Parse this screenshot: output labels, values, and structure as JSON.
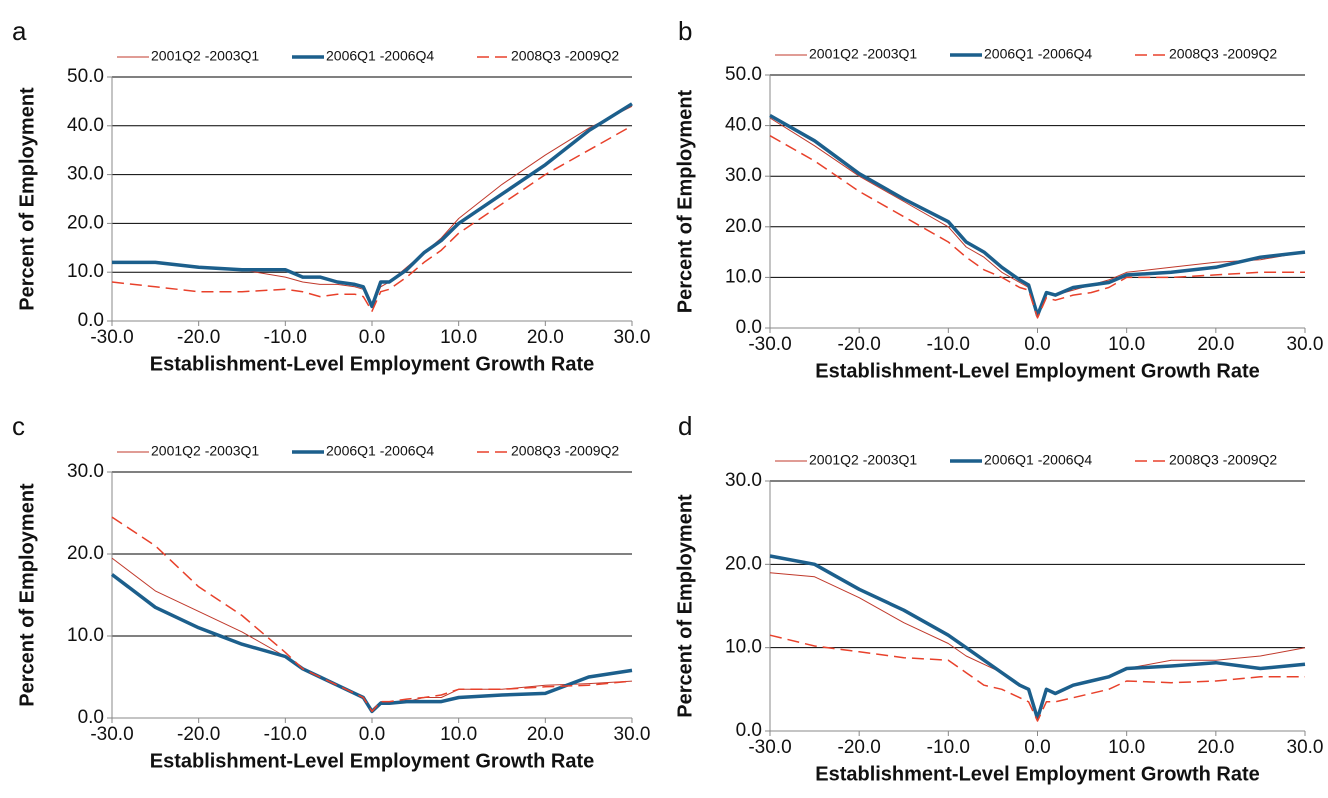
{
  "chart_data": [
    {
      "type": "line",
      "panel": "a",
      "x_label": "Establishment-Level Employment Growth Rate",
      "y_label": "Percent of Employment",
      "grid": true,
      "x": [
        -30,
        -25,
        -20,
        -15,
        -10,
        -8,
        -6,
        -4,
        -2,
        -1,
        0,
        1,
        2,
        4,
        6,
        8,
        10,
        15,
        20,
        25,
        30
      ],
      "xlim": [
        -30,
        30
      ],
      "xticks": [
        {
          "value": -30,
          "label": "-30.0"
        },
        {
          "value": -20,
          "label": "-20.0"
        },
        {
          "value": -10,
          "label": "-10.0"
        },
        {
          "value": 0,
          "label": "0.0"
        },
        {
          "value": 10,
          "label": "10.0"
        },
        {
          "value": 20,
          "label": "20.0"
        },
        {
          "value": 30,
          "label": "30.0"
        }
      ],
      "ylim": [
        0,
        50
      ],
      "yticks": [
        {
          "value": 0,
          "label": "0.0"
        },
        {
          "value": 10,
          "label": "10.0"
        },
        {
          "value": 20,
          "label": "20.0"
        },
        {
          "value": 30,
          "label": "30.0"
        },
        {
          "value": 40,
          "label": "40.0"
        },
        {
          "value": 50,
          "label": "50.0"
        }
      ],
      "series": [
        {
          "name": "2001Q2 -2003Q1",
          "color": "#c0392b",
          "width": 1,
          "dashed": false,
          "values": [
            12,
            12,
            11,
            10.5,
            9,
            8,
            7.5,
            7.5,
            7,
            6.5,
            3,
            7,
            8,
            11,
            14,
            17,
            21,
            28,
            34,
            39.5,
            44
          ]
        },
        {
          "name": "2006Q1 -2006Q4",
          "color": "#1c5f8c",
          "width": 3.5,
          "dashed": false,
          "values": [
            12,
            12,
            11,
            10.5,
            10.5,
            9,
            9,
            8,
            7.5,
            7,
            3,
            8,
            8,
            10.5,
            14,
            16.5,
            20,
            26,
            32,
            39,
            44.5
          ]
        },
        {
          "name": "2008Q3 -2009Q2",
          "color": "#e8412b",
          "width": 1.5,
          "dashed": true,
          "values": [
            8,
            7,
            6,
            6,
            6.5,
            6,
            5,
            5.5,
            5.5,
            5,
            2,
            6,
            6.5,
            9,
            12,
            14.5,
            18,
            24,
            30,
            35,
            40
          ]
        }
      ]
    },
    {
      "type": "line",
      "panel": "b",
      "x_label": "Establishment-Level Employment Growth Rate",
      "y_label": "Percent of Employment",
      "grid": true,
      "x": [
        -30,
        -25,
        -20,
        -15,
        -10,
        -8,
        -6,
        -4,
        -2,
        -1,
        0,
        1,
        2,
        4,
        6,
        8,
        10,
        15,
        20,
        25,
        30
      ],
      "xlim": [
        -30,
        30
      ],
      "xticks": [
        {
          "value": -30,
          "label": "-30.0"
        },
        {
          "value": -20,
          "label": "-20.0"
        },
        {
          "value": -10,
          "label": "-10.0"
        },
        {
          "value": 0,
          "label": "0.0"
        },
        {
          "value": 10,
          "label": "10.0"
        },
        {
          "value": 20,
          "label": "20.0"
        },
        {
          "value": 30,
          "label": "30.0"
        }
      ],
      "ylim": [
        0,
        50
      ],
      "yticks": [
        {
          "value": 0,
          "label": "0.0"
        },
        {
          "value": 10,
          "label": "10.0"
        },
        {
          "value": 20,
          "label": "20.0"
        },
        {
          "value": 30,
          "label": "30.0"
        },
        {
          "value": 40,
          "label": "40.0"
        },
        {
          "value": 50,
          "label": "50.0"
        }
      ],
      "series": [
        {
          "name": "2001Q2 -2003Q1",
          "color": "#c0392b",
          "width": 1,
          "dashed": false,
          "values": [
            41.5,
            36,
            30,
            25,
            20,
            16,
            14,
            11,
            9,
            8,
            2.5,
            7,
            6.5,
            7.5,
            8.5,
            9.5,
            11,
            12,
            13,
            13.5,
            15
          ]
        },
        {
          "name": "2006Q1 -2006Q4",
          "color": "#1c5f8c",
          "width": 3.5,
          "dashed": false,
          "values": [
            42,
            37,
            30.5,
            25.5,
            21,
            17,
            15,
            12,
            9.5,
            8.5,
            2.5,
            7,
            6.5,
            8,
            8.5,
            9,
            10.5,
            11,
            12,
            14,
            15
          ]
        },
        {
          "name": "2008Q3 -2009Q2",
          "color": "#e8412b",
          "width": 1.5,
          "dashed": true,
          "values": [
            38,
            33,
            27,
            22,
            17,
            14,
            11.5,
            10,
            8,
            7.5,
            2,
            6,
            5.5,
            6.5,
            7,
            8,
            10,
            10,
            10.5,
            11,
            11
          ]
        }
      ]
    },
    {
      "type": "line",
      "panel": "c",
      "x_label": "Establishment-Level Employment Growth Rate",
      "y_label": "Percent of Employment",
      "grid": true,
      "x": [
        -30,
        -25,
        -20,
        -15,
        -10,
        -8,
        -6,
        -4,
        -2,
        -1,
        0,
        1,
        2,
        4,
        6,
        8,
        10,
        15,
        20,
        25,
        30
      ],
      "xlim": [
        -30,
        30
      ],
      "xticks": [
        {
          "value": -30,
          "label": "-30.0"
        },
        {
          "value": -20,
          "label": "-20.0"
        },
        {
          "value": -10,
          "label": "-10.0"
        },
        {
          "value": 0,
          "label": "0.0"
        },
        {
          "value": 10,
          "label": "10.0"
        },
        {
          "value": 20,
          "label": "20.0"
        },
        {
          "value": 30,
          "label": "30.0"
        }
      ],
      "ylim": [
        0,
        30
      ],
      "yticks": [
        {
          "value": 0,
          "label": "0.0"
        },
        {
          "value": 10,
          "label": "10.0"
        },
        {
          "value": 20,
          "label": "20.0"
        },
        {
          "value": 30,
          "label": "30.0"
        }
      ],
      "series": [
        {
          "name": "2001Q2 -2003Q1",
          "color": "#c0392b",
          "width": 1,
          "dashed": false,
          "values": [
            19.5,
            15.5,
            13,
            10.5,
            7.5,
            6,
            5,
            4,
            3,
            2.5,
            0.8,
            2,
            2,
            2,
            2.5,
            2.5,
            3.5,
            3.5,
            4,
            4.2,
            4.5
          ]
        },
        {
          "name": "2006Q1 -2006Q4",
          "color": "#1c5f8c",
          "width": 3.5,
          "dashed": false,
          "values": [
            17.5,
            13.5,
            11,
            9,
            7.5,
            6,
            5,
            4,
            3,
            2.5,
            0.8,
            1.8,
            1.8,
            2,
            2,
            2,
            2.5,
            2.8,
            3,
            5,
            5.8
          ]
        },
        {
          "name": "2008Q3 -2009Q2",
          "color": "#e8412b",
          "width": 1.5,
          "dashed": true,
          "values": [
            24.5,
            21,
            16,
            12.5,
            8,
            6,
            5,
            4,
            3,
            2.5,
            0.8,
            2,
            2,
            2.3,
            2.5,
            2.8,
            3.5,
            3.5,
            3.8,
            4,
            4.5
          ]
        }
      ]
    },
    {
      "type": "line",
      "panel": "d",
      "x_label": "Establishment-Level Employment Growth Rate",
      "y_label": "Percent of Employment",
      "grid": true,
      "x": [
        -30,
        -25,
        -20,
        -15,
        -10,
        -8,
        -6,
        -4,
        -2,
        -1,
        0,
        1,
        2,
        4,
        6,
        8,
        10,
        15,
        20,
        25,
        30
      ],
      "xlim": [
        -30,
        30
      ],
      "xticks": [
        {
          "value": -30,
          "label": "-30.0"
        },
        {
          "value": -20,
          "label": "-20.0"
        },
        {
          "value": -10,
          "label": "-10.0"
        },
        {
          "value": 0,
          "label": "0.0"
        },
        {
          "value": 10,
          "label": "10.0"
        },
        {
          "value": 20,
          "label": "20.0"
        },
        {
          "value": 30,
          "label": "30.0"
        }
      ],
      "ylim": [
        0,
        30
      ],
      "yticks": [
        {
          "value": 0,
          "label": "0.0"
        },
        {
          "value": 10,
          "label": "10.0"
        },
        {
          "value": 20,
          "label": "20.0"
        },
        {
          "value": 30,
          "label": "30.0"
        }
      ],
      "series": [
        {
          "name": "2001Q2 -2003Q1",
          "color": "#c0392b",
          "width": 1,
          "dashed": false,
          "values": [
            19,
            18.5,
            16,
            13,
            10.5,
            9,
            8,
            7,
            5.5,
            5,
            1.3,
            5,
            4.5,
            5.5,
            6,
            6.5,
            7.5,
            8.5,
            8.5,
            9,
            10
          ]
        },
        {
          "name": "2006Q1 -2006Q4",
          "color": "#1c5f8c",
          "width": 3.5,
          "dashed": false,
          "values": [
            21,
            20,
            17,
            14.5,
            11.5,
            10,
            8.5,
            7,
            5.5,
            5,
            1.5,
            5,
            4.5,
            5.5,
            6,
            6.5,
            7.5,
            7.8,
            8.2,
            7.5,
            8
          ]
        },
        {
          "name": "2008Q3 -2009Q2",
          "color": "#e8412b",
          "width": 1.5,
          "dashed": true,
          "values": [
            11.5,
            10.2,
            9.5,
            8.8,
            8.5,
            7,
            5.5,
            5,
            4,
            3.5,
            1.2,
            3.5,
            3.5,
            4,
            4.5,
            5,
            6,
            5.8,
            6,
            6.5,
            6.5
          ]
        }
      ]
    }
  ]
}
